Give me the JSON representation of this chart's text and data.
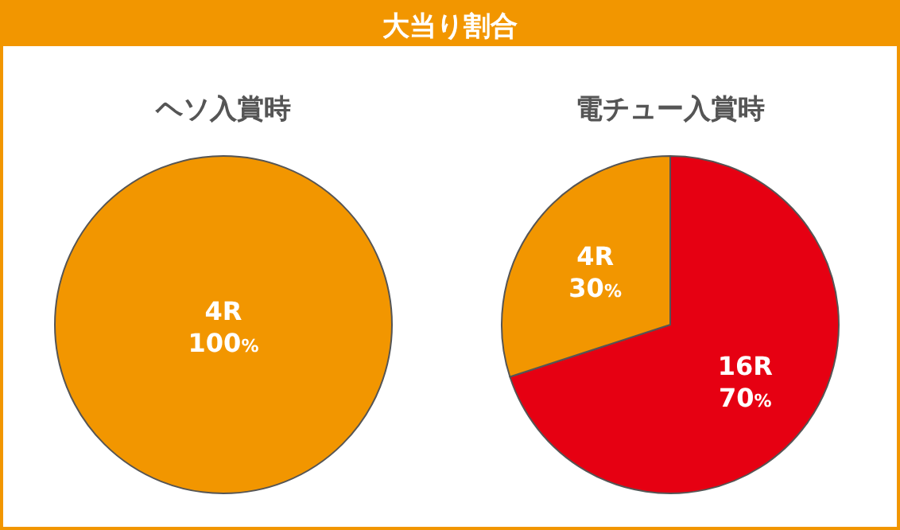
{
  "chart_data": [
    {
      "type": "pie",
      "annotations": [
        "大当り割合"
      ],
      "title": "ヘソ入賞時",
      "categories": [
        "4R"
      ],
      "values": [
        100
      ],
      "colors": [
        "#f29600"
      ],
      "value_labels": [
        "100%"
      ]
    },
    {
      "type": "pie",
      "title": "電チュー入賞時",
      "categories": [
        "16R",
        "4R"
      ],
      "values": [
        70,
        30
      ],
      "colors": [
        "#e60012",
        "#f29600"
      ],
      "value_labels": [
        "70%",
        "30%"
      ]
    }
  ]
}
